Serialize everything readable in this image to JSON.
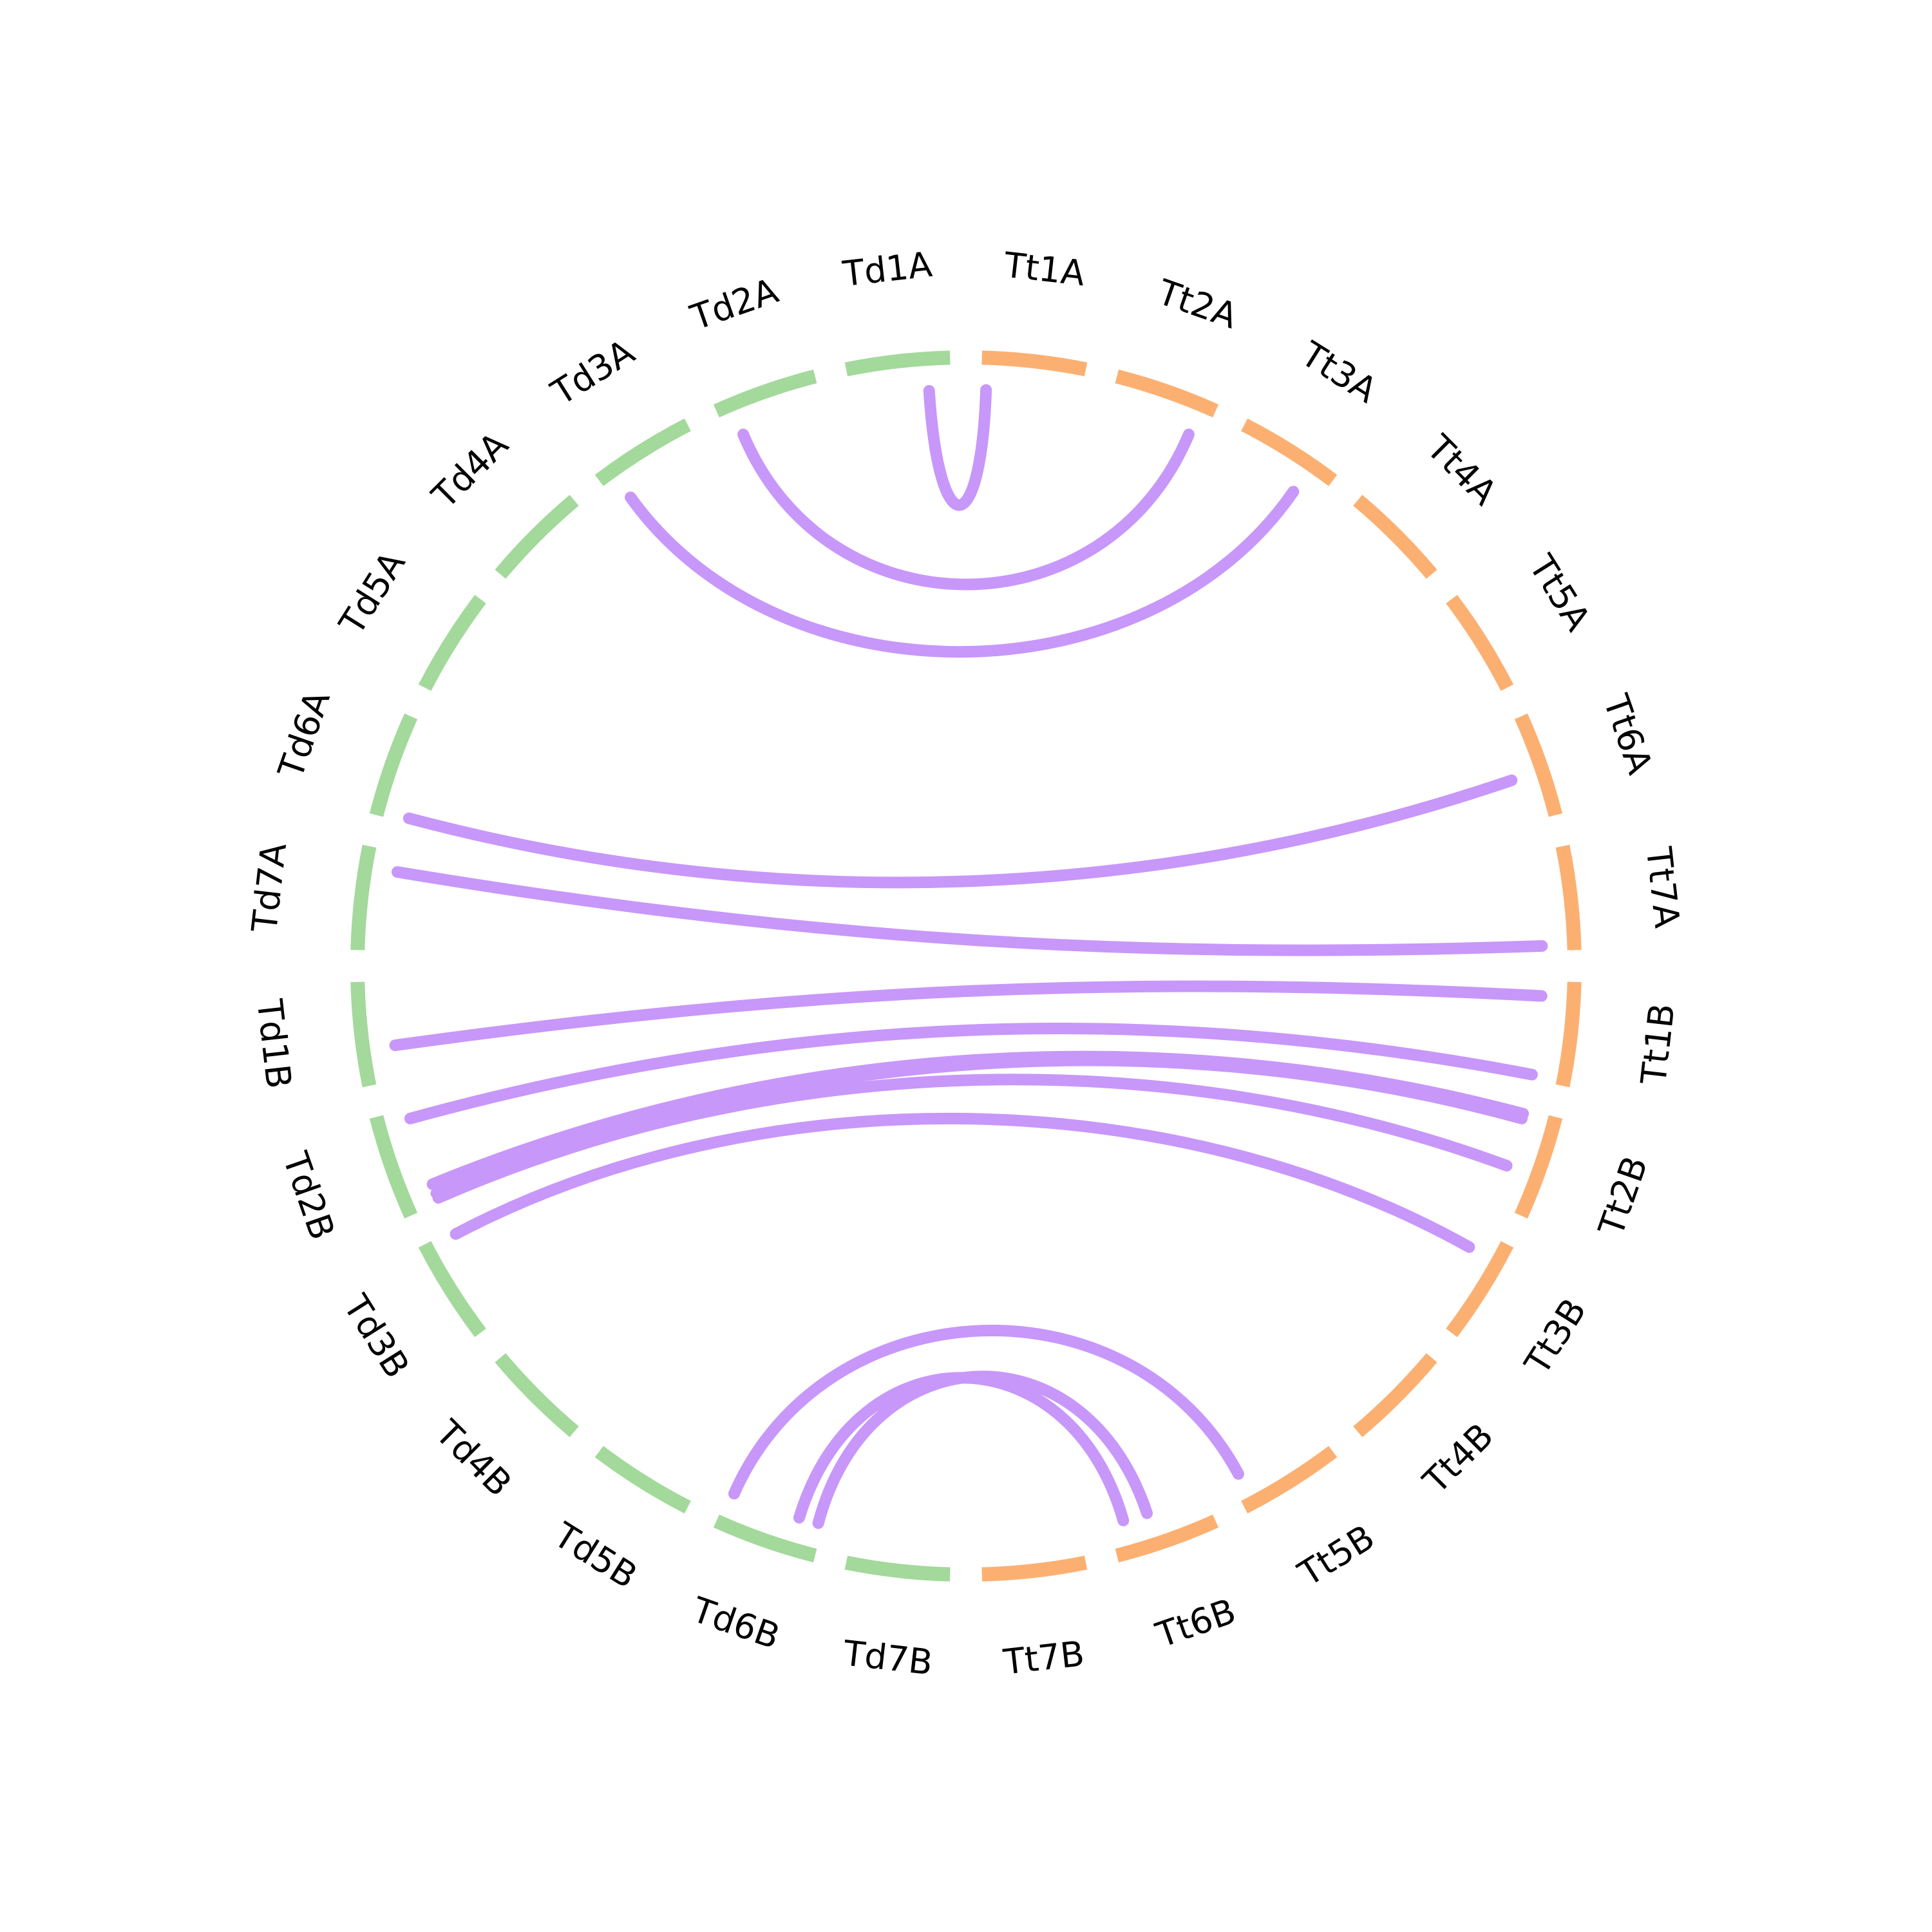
{
  "colors": {
    "td_chromosomes": "#a3d99b",
    "tt_chromosomes": "#fbb072",
    "links": "#c897fa",
    "labels": "#000000",
    "background": "#ffffff"
  },
  "chromosomes": [
    {
      "id": "Tt1A",
      "group": "Tt"
    },
    {
      "id": "Tt2A",
      "group": "Tt"
    },
    {
      "id": "Tt3A",
      "group": "Tt"
    },
    {
      "id": "Tt4A",
      "group": "Tt"
    },
    {
      "id": "Tt5A",
      "group": "Tt"
    },
    {
      "id": "Tt6A",
      "group": "Tt"
    },
    {
      "id": "Tt7A",
      "group": "Tt"
    },
    {
      "id": "Tt1B",
      "group": "Tt"
    },
    {
      "id": "Tt2B",
      "group": "Tt"
    },
    {
      "id": "Tt3B",
      "group": "Tt"
    },
    {
      "id": "Tt4B",
      "group": "Tt"
    },
    {
      "id": "Tt5B",
      "group": "Tt"
    },
    {
      "id": "Tt6B",
      "group": "Tt"
    },
    {
      "id": "Tt7B",
      "group": "Tt"
    },
    {
      "id": "Td7B",
      "group": "Td"
    },
    {
      "id": "Td6B",
      "group": "Td"
    },
    {
      "id": "Td5B",
      "group": "Td"
    },
    {
      "id": "Td4B",
      "group": "Td"
    },
    {
      "id": "Td3B",
      "group": "Td"
    },
    {
      "id": "Td2B",
      "group": "Td"
    },
    {
      "id": "Td1B",
      "group": "Td"
    },
    {
      "id": "Td7A",
      "group": "Td"
    },
    {
      "id": "Td6A",
      "group": "Td"
    },
    {
      "id": "Td5A",
      "group": "Td"
    },
    {
      "id": "Td4A",
      "group": "Td"
    },
    {
      "id": "Td3A",
      "group": "Td"
    },
    {
      "id": "Td2A",
      "group": "Td"
    },
    {
      "id": "Td1A",
      "group": "Td"
    }
  ],
  "links": [
    {
      "from": "Td1A",
      "from_pos": 0.78,
      "to": "Tt1A",
      "to_pos": 0.05
    },
    {
      "from": "Td2A",
      "from_pos": 0.15,
      "to": "Tt2A",
      "to_pos": 0.85
    },
    {
      "from": "Td3A",
      "from_pos": 0.15,
      "to": "Tt3A",
      "to_pos": 0.75
    },
    {
      "from": "Td6A",
      "from_pos": 0.05,
      "to": "Tt6A",
      "to_pos": 0.55
    },
    {
      "from": "Td7A",
      "from_pos": 0.8,
      "to": "Tt7A",
      "to_pos": 0.95
    },
    {
      "from": "Td1B",
      "from_pos": 0.35,
      "to": "Tt1B",
      "to_pos": 0.15
    },
    {
      "from": "Td2B",
      "from_pos": 0.9,
      "to": "Tt1B",
      "to_pos": 0.95
    },
    {
      "from": "Td2B",
      "from_pos": 0.2,
      "to": "Tt2B",
      "to_pos": 0.05
    },
    {
      "from": "Td2B",
      "from_pos": 0.1,
      "to": "Tt2B",
      "to_pos": 0.1
    },
    {
      "from": "Td2B",
      "from_pos": 0.05,
      "to": "Tt2B",
      "to_pos": 0.6
    },
    {
      "from": "Td3B",
      "from_pos": 0.95,
      "to": "Tt3B",
      "to_pos": 0.2
    },
    {
      "from": "Td6B",
      "from_pos": 0.95,
      "to": "Tt5B",
      "to_pos": 0.9
    },
    {
      "from": "Td6B",
      "from_pos": 0.25,
      "to": "Tt6B",
      "to_pos": 0.85
    },
    {
      "from": "Td6B",
      "from_pos": 0.05,
      "to": "Tt6B",
      "to_pos": 0.6
    }
  ]
}
